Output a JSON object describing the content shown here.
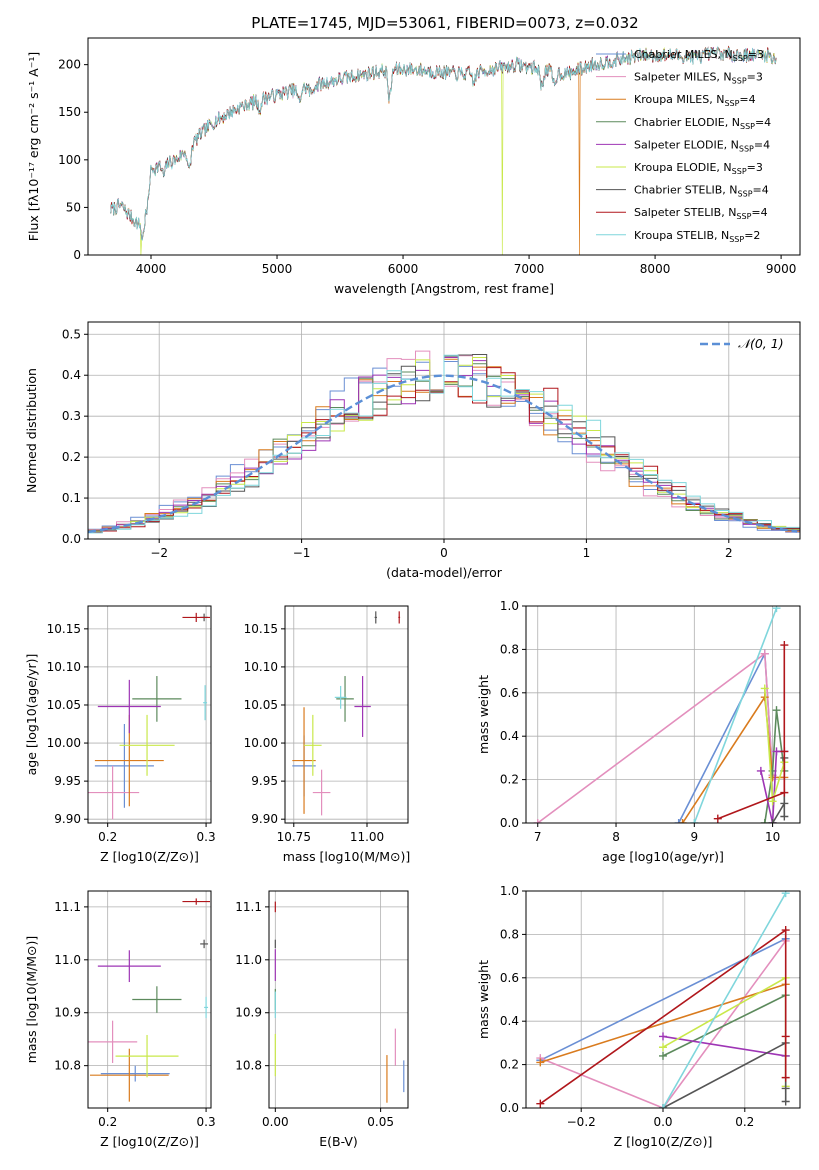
{
  "figure_title": "PLATE=1745, MJD=53061, FIBERID=0073, z=0.032",
  "colors": {
    "Chabrier MILES": "#6a8fd4",
    "Salpeter MILES": "#e38fbd",
    "Kroupa MILES": "#d97b1e",
    "Chabrier ELODIE": "#5c8a5c",
    "Salpeter ELODIE": "#9e35b5",
    "Kroupa ELODIE": "#c9e84a",
    "Chabrier STELIB": "#555555",
    "Salpeter STELIB": "#b0171c",
    "Kroupa STELIB": "#7fd6dc"
  },
  "chart_data": [
    {
      "id": "spectrum",
      "type": "line",
      "xlabel": "wavelength [Angstrom, rest frame]",
      "ylabel": "Flux [fλ10⁻¹⁷ erg cm⁻² s⁻¹ A⁻¹]",
      "xlim": [
        3500,
        9150
      ],
      "ylim": [
        0,
        228
      ],
      "xticks": [
        "4000",
        "5000",
        "6000",
        "7000",
        "8000",
        "9000"
      ],
      "yticks": [
        "0",
        "50",
        "100",
        "150",
        "200"
      ],
      "grid": false,
      "legend_position": "right",
      "legend": [
        {
          "name": "Chabrier MILES, NSSP=3",
          "base": "Chabrier MILES, N",
          "sub": "SSP",
          "tail": "=3"
        },
        {
          "name": "Salpeter MILES, NSSP=3",
          "base": "Salpeter MILES, N",
          "sub": "SSP",
          "tail": "=3"
        },
        {
          "name": "Kroupa MILES, NSSP=4",
          "base": "Kroupa MILES, N",
          "sub": "SSP",
          "tail": "=4"
        },
        {
          "name": "Chabrier ELODIE, NSSP=4",
          "base": "Chabrier ELODIE, N",
          "sub": "SSP",
          "tail": "=4"
        },
        {
          "name": "Salpeter ELODIE, NSSP=4",
          "base": "Salpeter ELODIE, N",
          "sub": "SSP",
          "tail": "=4"
        },
        {
          "name": "Kroupa ELODIE, NSSP=3",
          "base": "Kroupa ELODIE, N",
          "sub": "SSP",
          "tail": "=3"
        },
        {
          "name": "Chabrier STELIB, NSSP=4",
          "base": "Chabrier STELIB, N",
          "sub": "SSP",
          "tail": "=4"
        },
        {
          "name": "Salpeter STELIB, NSSP=4",
          "base": "Salpeter STELIB, N",
          "sub": "SSP",
          "tail": "=4"
        },
        {
          "name": "Kroupa STELIB, NSSP=2",
          "base": "Kroupa STELIB, N",
          "sub": "SSP",
          "tail": "=2"
        }
      ],
      "continuum": {
        "x": [
          3680,
          3760,
          3840,
          3900,
          3950,
          4000,
          4100,
          4200,
          4300,
          4400,
          4500,
          4700,
          4900,
          5100,
          5300,
          5500,
          5700,
          5900,
          6100,
          6300,
          6500,
          6700,
          6900,
          7100,
          7300,
          7500,
          7700,
          7900,
          8100,
          8300,
          8500,
          8700,
          8900,
          8960
        ],
        "y": [
          48,
          52,
          40,
          32,
          55,
          90,
          95,
          100,
          112,
          128,
          140,
          155,
          165,
          172,
          178,
          185,
          190,
          195,
          195,
          192,
          190,
          195,
          200,
          195,
          190,
          200,
          205,
          210,
          210,
          208,
          212,
          210,
          210,
          205
        ]
      },
      "dips": [
        {
          "x": 3934,
          "depth": 30
        },
        {
          "x": 3969,
          "depth": 22
        },
        {
          "x": 4101,
          "depth": 12
        },
        {
          "x": 4304,
          "depth": 25
        },
        {
          "x": 4861,
          "depth": 10
        },
        {
          "x": 5175,
          "depth": 14
        },
        {
          "x": 5270,
          "depth": 8
        },
        {
          "x": 5893,
          "depth": 32
        },
        {
          "x": 6563,
          "depth": 10
        },
        {
          "x": 7100,
          "depth": 18
        },
        {
          "x": 7200,
          "depth": 14
        }
      ],
      "cutoffs": [
        {
          "series": "Kroupa ELODIE",
          "x": 3920
        },
        {
          "series": "Kroupa ELODIE",
          "x": 6790
        },
        {
          "series": "Kroupa MILES",
          "x": 7400
        }
      ]
    },
    {
      "id": "residuals",
      "type": "step",
      "xlabel": "(data-model)/error",
      "ylabel": "Normed distribution",
      "xlim": [
        -2.5,
        2.5
      ],
      "ylim": [
        0,
        0.53
      ],
      "xticks": [
        -2,
        -1,
        0,
        1,
        2
      ],
      "xtick_labels": [
        "−2",
        "−1",
        "0",
        "1",
        "2"
      ],
      "yticks": [
        0.0,
        0.1,
        0.2,
        0.3,
        0.4,
        0.5
      ],
      "ytick_labels": [
        "0.0",
        "0.1",
        "0.2",
        "0.3",
        "0.4",
        "0.5"
      ],
      "grid": true,
      "legend_position": "top-right",
      "gaussian_label": "𝒩(0, 1)",
      "gaussian_color": "#5b8fd6",
      "bin_width": 0.1
    },
    {
      "id": "age_vs_Z",
      "type": "errorbar",
      "xlabel": "Z [log10(Z/Z⊙)]",
      "ylabel": "age  [log10(age/yr)]",
      "xlim": [
        0.18,
        0.305
      ],
      "ylim": [
        9.895,
        10.18
      ],
      "xticks": [
        0.2,
        0.3
      ],
      "xtick_labels": [
        "0.2",
        "0.3"
      ],
      "yticks": [
        9.9,
        9.95,
        10.0,
        10.05,
        10.1,
        10.15
      ],
      "ytick_labels": [
        "9.90",
        "9.95",
        "10.00",
        "10.05",
        "10.10",
        "10.15"
      ],
      "grid": true,
      "points": [
        {
          "series": "Chabrier MILES",
          "x": 0.217,
          "y": 9.97,
          "xerr": 0.03,
          "yerr": 0.055
        },
        {
          "series": "Salpeter MILES",
          "x": 0.205,
          "y": 9.935,
          "xerr": 0.027,
          "yerr": 0.035
        },
        {
          "series": "Kroupa MILES",
          "x": 0.222,
          "y": 9.977,
          "xerr": 0.035,
          "yerr": 0.06
        },
        {
          "series": "Chabrier ELODIE",
          "x": 0.25,
          "y": 10.058,
          "xerr": 0.025,
          "yerr": 0.03
        },
        {
          "series": "Salpeter ELODIE",
          "x": 0.222,
          "y": 10.048,
          "xerr": 0.032,
          "yerr": 0.035
        },
        {
          "series": "Kroupa ELODIE",
          "x": 0.24,
          "y": 9.997,
          "xerr": 0.028,
          "yerr": 0.04
        },
        {
          "series": "Chabrier STELIB",
          "x": 0.298,
          "y": 10.165,
          "xerr": 0.004,
          "yerr": 0.005
        },
        {
          "series": "Salpeter STELIB",
          "x": 0.29,
          "y": 10.165,
          "xerr": 0.014,
          "yerr": 0.006
        },
        {
          "series": "Kroupa STELIB",
          "x": 0.299,
          "y": 10.053,
          "xerr": 0.002,
          "yerr": 0.023
        }
      ]
    },
    {
      "id": "age_vs_mass",
      "type": "errorbar",
      "xlabel": "mass [log10(M/M⊙)]",
      "ylabel": "",
      "xlim": [
        10.72,
        11.14
      ],
      "ylim": [
        9.895,
        10.18
      ],
      "xticks": [
        10.75,
        11.0
      ],
      "xtick_labels": [
        "10.75",
        "11.00"
      ],
      "yticks": [
        9.9,
        9.95,
        10.0,
        10.05,
        10.1,
        10.15
      ],
      "ytick_labels": [
        "9.90",
        "9.95",
        "10.00",
        "10.05",
        "10.10",
        "10.15"
      ],
      "grid": true,
      "points": [
        {
          "series": "Chabrier MILES",
          "x": 10.785,
          "y": 9.97,
          "xerr": 0.04,
          "yerr": 0.04
        },
        {
          "series": "Salpeter MILES",
          "x": 10.845,
          "y": 9.935,
          "xerr": 0.03,
          "yerr": 0.03
        },
        {
          "series": "Kroupa MILES",
          "x": 10.785,
          "y": 9.977,
          "xerr": 0.04,
          "yerr": 0.07
        },
        {
          "series": "Chabrier ELODIE",
          "x": 10.925,
          "y": 10.058,
          "xerr": 0.03,
          "yerr": 0.03
        },
        {
          "series": "Salpeter ELODIE",
          "x": 10.985,
          "y": 10.048,
          "xerr": 0.028,
          "yerr": 0.04
        },
        {
          "series": "Kroupa ELODIE",
          "x": 10.815,
          "y": 9.997,
          "xerr": 0.03,
          "yerr": 0.04
        },
        {
          "series": "Chabrier STELIB",
          "x": 11.03,
          "y": 10.165,
          "xerr": 0.004,
          "yerr": 0.008
        },
        {
          "series": "Salpeter STELIB",
          "x": 11.11,
          "y": 10.165,
          "xerr": 0.003,
          "yerr": 0.008
        },
        {
          "series": "Kroupa STELIB",
          "x": 10.91,
          "y": 10.06,
          "xerr": 0.02,
          "yerr": 0.015
        }
      ]
    },
    {
      "id": "mass_weight_vs_age",
      "type": "line",
      "xlabel": "age  [log10(age/yr)]",
      "ylabel": "mass weight",
      "xlim": [
        6.85,
        10.35
      ],
      "ylim": [
        0,
        1
      ],
      "xticks": [
        7,
        8,
        9,
        10
      ],
      "xtick_labels": [
        "7",
        "8",
        "9",
        "10"
      ],
      "yticks": [
        0.0,
        0.2,
        0.4,
        0.6,
        0.8,
        1.0
      ],
      "ytick_labels": [
        "0.0",
        "0.2",
        "0.4",
        "0.6",
        "0.8",
        "1.0"
      ],
      "grid": true,
      "series": [
        {
          "name": "Chabrier MILES",
          "x": [
            8.8,
            9.9,
            10.0
          ],
          "y": [
            0.0,
            0.78,
            0.22
          ]
        },
        {
          "name": "Salpeter MILES",
          "x": [
            7.0,
            9.9,
            10.0
          ],
          "y": [
            0.0,
            0.78,
            0.22
          ]
        },
        {
          "name": "Kroupa MILES",
          "x": [
            8.85,
            9.9,
            10.0,
            10.15
          ],
          "y": [
            0.0,
            0.58,
            0.21,
            0.21
          ]
        },
        {
          "name": "Chabrier ELODIE",
          "x": [
            9.9,
            10.0,
            10.05,
            10.15
          ],
          "y": [
            0.0,
            0.24,
            0.52,
            0.24
          ]
        },
        {
          "name": "Salpeter ELODIE",
          "x": [
            9.85,
            10.0,
            10.05,
            10.15
          ],
          "y": [
            0.24,
            0.0,
            0.33,
            0.33
          ]
        },
        {
          "name": "Kroupa ELODIE",
          "x": [
            9.9,
            10.0,
            10.15
          ],
          "y": [
            0.62,
            0.1,
            0.28
          ]
        },
        {
          "name": "Chabrier STELIB",
          "x": [
            10.0,
            10.15,
            10.15,
            10.15
          ],
          "y": [
            0.0,
            0.09,
            0.03,
            0.3
          ]
        },
        {
          "name": "Salpeter STELIB",
          "x": [
            9.3,
            10.15,
            10.15,
            10.15
          ],
          "y": [
            0.02,
            0.14,
            0.82,
            0.33
          ]
        },
        {
          "name": "Kroupa STELIB",
          "x": [
            9.0,
            10.05
          ],
          "y": [
            0.0,
            0.99
          ]
        }
      ]
    },
    {
      "id": "mass_vs_Z",
      "type": "errorbar",
      "xlabel": "Z [log10(Z/Z⊙)]",
      "ylabel": "mass [log10(M/M⊙)]",
      "xlim": [
        0.18,
        0.305
      ],
      "ylim": [
        10.72,
        11.13
      ],
      "xticks": [
        0.2,
        0.3
      ],
      "xtick_labels": [
        "0.2",
        "0.3"
      ],
      "yticks": [
        10.8,
        10.9,
        11.0,
        11.1
      ],
      "ytick_labels": [
        "10.8",
        "10.9",
        "11.0",
        "11.1"
      ],
      "grid": true,
      "points": [
        {
          "series": "Chabrier MILES",
          "x": 0.228,
          "y": 10.785,
          "xerr": 0.035,
          "yerr": 0.015
        },
        {
          "series": "Salpeter MILES",
          "x": 0.205,
          "y": 10.845,
          "xerr": 0.025,
          "yerr": 0.04
        },
        {
          "series": "Kroupa MILES",
          "x": 0.222,
          "y": 10.782,
          "xerr": 0.04,
          "yerr": 0.05
        },
        {
          "series": "Chabrier ELODIE",
          "x": 0.25,
          "y": 10.925,
          "xerr": 0.025,
          "yerr": 0.025
        },
        {
          "series": "Salpeter ELODIE",
          "x": 0.222,
          "y": 10.988,
          "xerr": 0.032,
          "yerr": 0.03
        },
        {
          "series": "Kroupa ELODIE",
          "x": 0.24,
          "y": 10.818,
          "xerr": 0.032,
          "yerr": 0.04
        },
        {
          "series": "Chabrier STELIB",
          "x": 0.298,
          "y": 11.03,
          "xerr": 0.004,
          "yerr": 0.008
        },
        {
          "series": "Salpeter STELIB",
          "x": 0.29,
          "y": 11.11,
          "xerr": 0.014,
          "yerr": 0.006
        },
        {
          "series": "Kroupa STELIB",
          "x": 0.3,
          "y": 10.91,
          "xerr": 0.002,
          "yerr": 0.02
        }
      ]
    },
    {
      "id": "mass_vs_EBV",
      "type": "errorbar",
      "xlabel": "E(B-V)",
      "ylabel": "",
      "xlim": [
        -0.003,
        0.063
      ],
      "ylim": [
        10.72,
        11.13
      ],
      "xticks": [
        0.0,
        0.05
      ],
      "xtick_labels": [
        "0.00",
        "0.05"
      ],
      "yticks": [
        10.8,
        10.9,
        11.0,
        11.1
      ],
      "ytick_labels": [
        "10.8",
        "10.9",
        "11.0",
        "11.1"
      ],
      "grid": true,
      "points": [
        {
          "series": "Chabrier MILES",
          "x": 0.061,
          "y": 10.78,
          "xerr": 0.0,
          "yerr": 0.03
        },
        {
          "series": "Salpeter MILES",
          "x": 0.057,
          "y": 10.835,
          "xerr": 0.0,
          "yerr": 0.035
        },
        {
          "series": "Kroupa MILES",
          "x": 0.053,
          "y": 10.775,
          "xerr": 0.0,
          "yerr": 0.045
        },
        {
          "series": "Chabrier ELODIE",
          "x": 0.0,
          "y": 10.925,
          "xerr": 0.0,
          "yerr": 0.02
        },
        {
          "series": "Salpeter ELODIE",
          "x": 0.0,
          "y": 10.99,
          "xerr": 0.0,
          "yerr": 0.03
        },
        {
          "series": "Kroupa ELODIE",
          "x": 0.0,
          "y": 10.82,
          "xerr": 0.0,
          "yerr": 0.04
        },
        {
          "series": "Chabrier STELIB",
          "x": 0.0,
          "y": 11.03,
          "xerr": 0.0,
          "yerr": 0.008
        },
        {
          "series": "Salpeter STELIB",
          "x": 0.0,
          "y": 11.1,
          "xerr": 0.0,
          "yerr": 0.01
        },
        {
          "series": "Kroupa STELIB",
          "x": 0.0,
          "y": 10.915,
          "xerr": 0.0,
          "yerr": 0.025
        }
      ]
    },
    {
      "id": "mass_weight_vs_Z",
      "type": "line",
      "xlabel": "Z [log10(Z/Z⊙)]",
      "ylabel": "mass weight",
      "xlim": [
        -0.335,
        0.335
      ],
      "ylim": [
        0,
        1
      ],
      "xticks": [
        -0.2,
        0.0,
        0.2
      ],
      "xtick_labels": [
        "−0.2",
        "0.0",
        "0.2"
      ],
      "yticks": [
        0.0,
        0.2,
        0.4,
        0.6,
        0.8,
        1.0
      ],
      "ytick_labels": [
        "0.0",
        "0.2",
        "0.4",
        "0.6",
        "0.8",
        "1.0"
      ],
      "grid": true,
      "series": [
        {
          "name": "Chabrier MILES",
          "x": [
            -0.3,
            0.3
          ],
          "y": [
            0.22,
            0.78
          ]
        },
        {
          "name": "Salpeter MILES",
          "x": [
            -0.3,
            -0.0,
            0.3
          ],
          "y": [
            0.23,
            0.0,
            0.77
          ]
        },
        {
          "name": "Kroupa MILES",
          "x": [
            -0.3,
            0.3
          ],
          "y": [
            0.21,
            0.57
          ]
        },
        {
          "name": "Chabrier ELODIE",
          "x": [
            0.0,
            0.3,
            0.3
          ],
          "y": [
            0.24,
            0.52,
            0.24
          ]
        },
        {
          "name": "Salpeter ELODIE",
          "x": [
            0.0,
            0.3
          ],
          "y": [
            0.33,
            0.24
          ]
        },
        {
          "name": "Kroupa ELODIE",
          "x": [
            0.0,
            0.3,
            0.3
          ],
          "y": [
            0.28,
            0.6,
            0.1
          ]
        },
        {
          "name": "Chabrier STELIB",
          "x": [
            0.0,
            0.3,
            0.3,
            0.3
          ],
          "y": [
            0.0,
            0.3,
            0.09,
            0.03
          ]
        },
        {
          "name": "Salpeter STELIB",
          "x": [
            -0.3,
            0.3,
            0.3,
            0.3
          ],
          "y": [
            0.02,
            0.82,
            0.33,
            0.14
          ]
        },
        {
          "name": "Kroupa STELIB",
          "x": [
            0.0,
            0.3
          ],
          "y": [
            0.0,
            0.99
          ]
        }
      ]
    }
  ]
}
